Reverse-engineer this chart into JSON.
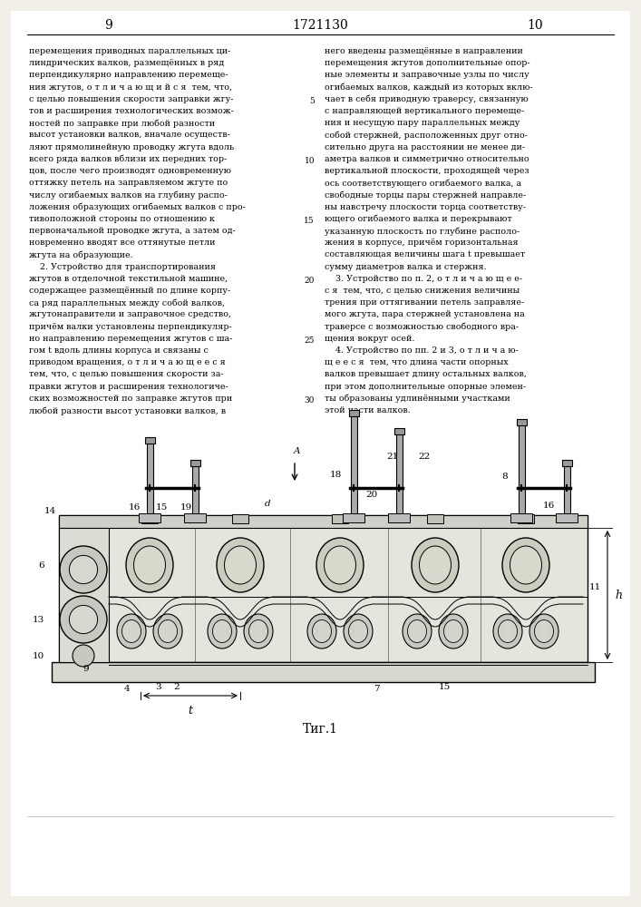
{
  "page_bg": "#f2efe8",
  "text_color": "#1a1a1a",
  "page_num_left": "9",
  "page_num_center": "1721130",
  "page_num_right": "10",
  "fig_caption": "Τиг.1",
  "col1_text": "перемещения приводных параллельных ци-\nлиндрических валков, размещённых в ряд\nперпендикулярно направлению перемеще-\nния жгутов, о т л и ч а ю щ и й с я  тем, что,\nс целью повышения скорости заправки жгу-\nтов и расширения технологических возмож-\nностей по заправке при любой разности\nвысот установки валков, вначале осуществ-\nляют прямолинейную проводку жгута вдоль\nвсего ряда валков вблизи их передних тор-\nцов, после чего производят одновременную\nоттяжку петель на заправляемом жгуте по\nчислу огибаемых валков на глубину распо-\nложения образующих огибаемых валков с про-\nтивоположной стороны по отношению к\nпервоначальной проводке жгута, а затем од-\nновременно вводят все оттянутые петли\nжгута на образующие.\n    2. Устройство для транспортирования\nжгутов в отделочной текстильной машине,\nсодержащее размещённый по длине корпу-\nса ряд параллельных между собой валков,\nжгутонаправители и заправочное средство,\nпричём валки установлены перпендикуляр-\nно направлению перемещения жгутов с ша-\nгом t вдоль длины корпуса и связаны с\nприводом вращения, о т л и ч а ю щ е е с я\nтем, что, с целью повышения скорости за-\nправки жгутов и расширения технологиче-\nских возможностей по заправке жгутов при\nлюбой разности высот установки валков, в",
  "col2_text": "него введены размещённые в направлении\nперемещения жгутов дополнительные опор-\nные элементы и заправочные узлы по числу\nогибаемых валков, каждый из которых вклю-\nчает в себя приводную траверсу, связанную\nс направляющей вертикального перемеще-\nния и несущую пару параллельных между\nсобой стержней, расположенных друг отно-\nсительно друга на расстоянии не менее ди-\nаметра валков и симметрично относительно\nвертикальной плоскости, проходящей через\nось соответствующего огибаемого валка, а\nсвободные торцы пары стержней направле-\nны навстречу плоскости торца соответству-\nющего огибаемого валка и перекрывают\nуказанную плоскость по глубине располо-\nжения в корпусе, причём горизонтальная\nсоставляющая величины шага t превышает\nсумму диаметров валка и стержня.\n    3. Устройство по п. 2, о т л и ч а ю щ е е-\nс я  тем, что, с целью снижения величины\nтрения при оттягивании петель заправляе-\nмого жгута, пара стержней установлена на\nтраверсе с возможностью свободного вра-\nщения вокруг осей.\n    4. Устройство по пп. 2 и 3, о т л и ч а ю-\nщ е е с я  тем, что длина части опорных\nвалков превышает длину остальных валков,\nпри этом дополнительные опорные элемен-\nты образованы удлинёнными участками\nэтой части валков.",
  "line_numbers_col1": {
    "14": 3,
    "15": 14,
    "19": 18,
    "20": 19,
    "25": 24,
    "30": 29
  },
  "line_numbers_col2": {
    "5": 4,
    "10": 9,
    "15": 14,
    "20": 19,
    "25": 22,
    "30": 28
  }
}
